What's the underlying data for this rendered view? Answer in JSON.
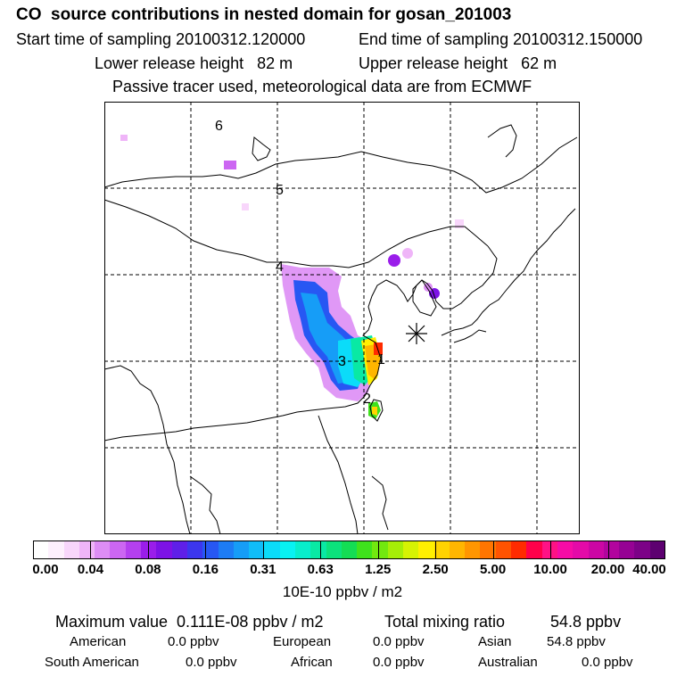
{
  "header": {
    "title": "CO  source contributions in nested domain for gosan_201003",
    "start_label": "Start time of sampling 20100312.120000",
    "end_label": "End time of sampling 20100312.150000",
    "lower_label": "Lower release height   82 m",
    "upper_label": "Upper release height   62 m",
    "note": "Passive tracer used, meteorological data are from ECMWF"
  },
  "map": {
    "markers": [
      "1",
      "2",
      "3",
      "4",
      "5",
      "6"
    ],
    "receptor_symbol": "asterisk"
  },
  "colorbar": {
    "ticks": [
      "0.00",
      "0.04",
      "0.08",
      "0.16",
      "0.31",
      "0.63",
      "1.25",
      "2.50",
      "5.00",
      "10.00",
      "20.00",
      "40.00"
    ],
    "colors": [
      "#ffffff",
      "#fdf0fd",
      "#f8d6fb",
      "#efb5f8",
      "#dd8df5",
      "#cc66f2",
      "#b440ef",
      "#9a1dea",
      "#7d12e6",
      "#5f1fe8",
      "#3c36ee",
      "#2757f3",
      "#1d7cf5",
      "#169df7",
      "#10bdf8",
      "#0bdcf9",
      "#08f2f2",
      "#08eecc",
      "#09e9a4",
      "#0ce27c",
      "#14dd54",
      "#3fe21c",
      "#72e80f",
      "#a6ee07",
      "#d6f303",
      "#fff000",
      "#ffd300",
      "#ffb600",
      "#ff9600",
      "#ff7500",
      "#ff5300",
      "#ff2b00",
      "#ff004a",
      "#ff1285",
      "#f60ca6",
      "#e40aa8",
      "#cc06a4",
      "#b2049e",
      "#960294",
      "#7c0287",
      "#5d0070"
    ],
    "unit": "10E-10 ppbv / m2"
  },
  "summary": {
    "max_label": "Maximum value  0.111E-08 ppbv / m2",
    "total_label": "Total mixing ratio",
    "total_value": "54.8 ppbv",
    "regions": [
      {
        "name": "American",
        "value": "0.0 ppbv"
      },
      {
        "name": "European",
        "value": "0.0 ppbv"
      },
      {
        "name": "Asian",
        "value": "54.8 ppbv"
      },
      {
        "name": "South American",
        "value": "0.0 ppbv"
      },
      {
        "name": "African",
        "value": "0.0 ppbv"
      },
      {
        "name": "Australian",
        "value": "0.0 ppbv"
      }
    ]
  }
}
